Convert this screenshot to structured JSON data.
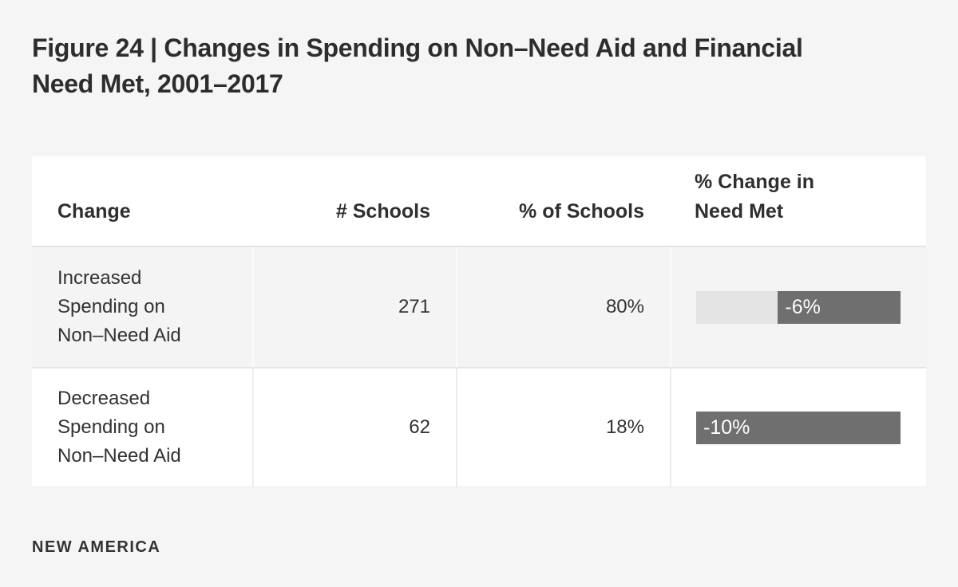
{
  "title": "Figure 24 | Changes in Spending on Non–Need Aid and Financial Need Met, 2001–2017",
  "footer": {
    "brand": "NEW AMERICA"
  },
  "table": {
    "bar_scale_max_abs": 10,
    "colors": {
      "bar_fill": "#6f6f6f",
      "bar_track": "#e4e4e4",
      "row_alt_background": "#f4f4f4"
    },
    "columns": [
      "Change",
      "# Schools",
      "% of Schools",
      "% Change in Need Met"
    ],
    "rows": [
      {
        "change": "Increased Spending on Non–Need Aid",
        "schools": "271",
        "pct_schools": "80%",
        "need_met_label": "-6%",
        "need_met_value": -6
      },
      {
        "change": "Decreased Spending on Non–Need Aid",
        "schools": "62",
        "pct_schools": "18%",
        "need_met_label": "-10%",
        "need_met_value": -10
      }
    ]
  },
  "chart_data": {
    "type": "table",
    "title": "Figure 24 | Changes in Spending on Non–Need Aid and Financial Need Met, 2001–2017",
    "columns": [
      "Change",
      "# Schools",
      "% of Schools",
      "% Change in Need Met"
    ],
    "rows": [
      [
        "Increased Spending on Non–Need Aid",
        271,
        "80%",
        "-6%"
      ],
      [
        "Decreased Spending on Non–Need Aid",
        62,
        "18%",
        "-10%"
      ]
    ],
    "embedded_bar_chart": {
      "type": "bar",
      "orientation": "horizontal",
      "categories": [
        "Increased Spending on Non–Need Aid",
        "Decreased Spending on Non–Need Aid"
      ],
      "values": [
        -6,
        -10
      ],
      "value_labels": [
        "-6%",
        "-10%"
      ],
      "axis_max_abs": 10,
      "anchor": "right",
      "legend": "none",
      "grid": "off"
    },
    "source_brand": "NEW AMERICA"
  }
}
